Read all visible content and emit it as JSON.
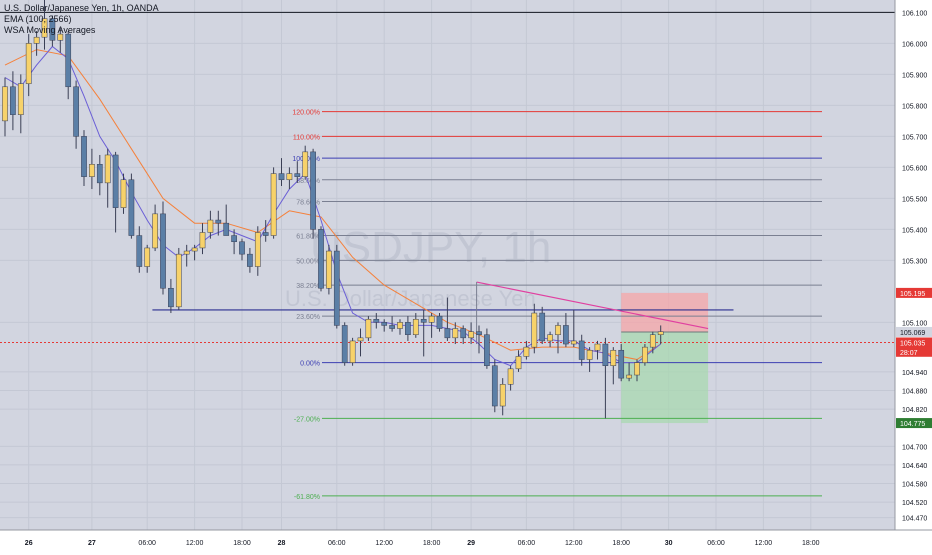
{
  "header": {
    "symbol_line": "U.S. Dollar/Japanese Yen, 1h, OANDA",
    "ema_line": "EMA (100, 2566)",
    "wsa_line": "WSA Moving Averages"
  },
  "watermark": {
    "ticker": "USDJPY, 1h",
    "name": "U.S. Dollar/Japanese Yen"
  },
  "colors": {
    "background": "#d2d5e0",
    "bull_candle": "#f7d26a",
    "bear_candle": "#5b7fa6",
    "ema_line": "#f5813b",
    "wma_line": "#6b5fd6",
    "fib_blue": "#3c3fb3",
    "fib_red": "#e53935",
    "fib_gray": "#7a7f91",
    "fib_green": "#4caf50",
    "trendline": "#e040a0",
    "support": "#2b2f8f",
    "price_current": "#e53935",
    "sl_zone": "#f5a5a8",
    "tp_zone": "#a8d8b0"
  },
  "chart_data": {
    "type": "candlestick",
    "y_axis": {
      "ylim": [
        104.43,
        106.14
      ],
      "ticks": [
        106.1,
        106.0,
        105.9,
        105.8,
        105.7,
        105.6,
        105.5,
        105.4,
        105.3,
        105.1,
        104.94,
        104.88,
        104.82,
        104.7,
        104.64,
        104.58,
        104.52,
        104.47
      ],
      "tick_labels": [
        "106.100",
        "106.000",
        "105.900",
        "105.800",
        "105.700",
        "105.600",
        "105.500",
        "105.400",
        "105.300",
        "105.100",
        "104.940",
        "104.880",
        "104.820",
        "104.700",
        "104.640",
        "104.580",
        "104.520",
        "104.470"
      ]
    },
    "x_axis": {
      "tick_labels": [
        "26",
        "27",
        "06:00",
        "12:00",
        "18:00",
        "28",
        "06:00",
        "12:00",
        "18:00",
        "29",
        "06:00",
        "12:00",
        "18:00",
        "30",
        "06:00",
        "12:00",
        "18:00"
      ],
      "tick_index": [
        3,
        11,
        18,
        24,
        30,
        35,
        42,
        48,
        54,
        59,
        66,
        72,
        78,
        84,
        90,
        96,
        102
      ]
    },
    "candles": [
      [
        105.75,
        105.89,
        105.7,
        105.86
      ],
      [
        105.86,
        105.91,
        105.72,
        105.77
      ],
      [
        105.77,
        105.9,
        105.71,
        105.87
      ],
      [
        105.87,
        106.03,
        105.83,
        106.0
      ],
      [
        106.0,
        106.04,
        105.96,
        106.02
      ],
      [
        106.02,
        106.14,
        105.98,
        106.08
      ],
      [
        106.08,
        106.09,
        105.99,
        106.01
      ],
      [
        106.01,
        106.05,
        105.97,
        106.03
      ],
      [
        106.03,
        106.04,
        105.82,
        105.86
      ],
      [
        105.86,
        105.88,
        105.66,
        105.7
      ],
      [
        105.7,
        105.72,
        105.54,
        105.57
      ],
      [
        105.57,
        105.66,
        105.53,
        105.61
      ],
      [
        105.61,
        105.64,
        105.51,
        105.55
      ],
      [
        105.55,
        105.66,
        105.47,
        105.64
      ],
      [
        105.64,
        105.65,
        105.39,
        105.47
      ],
      [
        105.47,
        105.58,
        105.45,
        105.56
      ],
      [
        105.56,
        105.58,
        105.37,
        105.38
      ],
      [
        105.38,
        105.41,
        105.26,
        105.28
      ],
      [
        105.28,
        105.35,
        105.26,
        105.34
      ],
      [
        105.34,
        105.48,
        105.33,
        105.45
      ],
      [
        105.45,
        105.49,
        105.19,
        105.21
      ],
      [
        105.21,
        105.24,
        105.13,
        105.15
      ],
      [
        105.15,
        105.34,
        105.14,
        105.32
      ],
      [
        105.32,
        105.35,
        105.28,
        105.33
      ],
      [
        105.33,
        105.35,
        105.3,
        105.34
      ],
      [
        105.34,
        105.42,
        105.32,
        105.39
      ],
      [
        105.39,
        105.46,
        105.37,
        105.43
      ],
      [
        105.43,
        105.46,
        105.38,
        105.42
      ],
      [
        105.42,
        105.48,
        105.38,
        105.38
      ],
      [
        105.38,
        105.4,
        105.32,
        105.36
      ],
      [
        105.36,
        105.37,
        105.3,
        105.32
      ],
      [
        105.32,
        105.34,
        105.26,
        105.28
      ],
      [
        105.28,
        105.41,
        105.25,
        105.39
      ],
      [
        105.39,
        105.43,
        105.36,
        105.38
      ],
      [
        105.38,
        105.6,
        105.37,
        105.58
      ],
      [
        105.58,
        105.63,
        105.54,
        105.56
      ],
      [
        105.56,
        105.6,
        105.53,
        105.58
      ],
      [
        105.58,
        105.62,
        105.55,
        105.57
      ],
      [
        105.57,
        105.67,
        105.56,
        105.65
      ],
      [
        105.65,
        105.66,
        105.37,
        105.4
      ],
      [
        105.4,
        105.41,
        105.2,
        105.21
      ],
      [
        105.21,
        105.35,
        105.19,
        105.33
      ],
      [
        105.33,
        105.35,
        105.08,
        105.09
      ],
      [
        105.09,
        105.1,
        104.96,
        104.97
      ],
      [
        104.97,
        105.05,
        104.96,
        105.04
      ],
      [
        105.04,
        105.08,
        104.99,
        105.05
      ],
      [
        105.05,
        105.12,
        105.04,
        105.11
      ],
      [
        105.11,
        105.13,
        105.08,
        105.1
      ],
      [
        105.1,
        105.11,
        105.07,
        105.09
      ],
      [
        105.09,
        105.12,
        105.07,
        105.08
      ],
      [
        105.08,
        105.11,
        105.06,
        105.1
      ],
      [
        105.1,
        105.12,
        105.04,
        105.06
      ],
      [
        105.06,
        105.13,
        105.05,
        105.11
      ],
      [
        105.11,
        105.14,
        104.99,
        105.1
      ],
      [
        105.1,
        105.13,
        105.05,
        105.12
      ],
      [
        105.12,
        105.13,
        105.07,
        105.08
      ],
      [
        105.08,
        105.18,
        105.04,
        105.05
      ],
      [
        105.05,
        105.1,
        105.03,
        105.08
      ],
      [
        105.08,
        105.09,
        105.03,
        105.05
      ],
      [
        105.05,
        105.1,
        105.03,
        105.07
      ],
      [
        105.07,
        105.09,
        105.0,
        105.06
      ],
      [
        105.06,
        105.08,
        104.95,
        104.96
      ],
      [
        104.96,
        104.98,
        104.81,
        104.83
      ],
      [
        104.83,
        104.92,
        104.8,
        104.9
      ],
      [
        104.9,
        104.96,
        104.88,
        104.95
      ],
      [
        104.95,
        105.01,
        104.94,
        104.99
      ],
      [
        104.99,
        105.04,
        104.98,
        105.02
      ],
      [
        105.02,
        105.16,
        105.0,
        105.13
      ],
      [
        105.13,
        105.15,
        105.03,
        105.04
      ],
      [
        105.04,
        105.07,
        105.02,
        105.06
      ],
      [
        105.06,
        105.1,
        105.0,
        105.09
      ],
      [
        105.09,
        105.13,
        105.02,
        105.03
      ],
      [
        105.03,
        105.14,
        105.02,
        105.04
      ],
      [
        105.04,
        105.06,
        104.96,
        104.98
      ],
      [
        104.98,
        105.02,
        104.94,
        105.01
      ],
      [
        105.01,
        105.04,
        104.98,
        105.03
      ],
      [
        105.03,
        105.05,
        104.79,
        104.96
      ],
      [
        104.96,
        105.02,
        104.9,
        105.01
      ],
      [
        105.01,
        105.03,
        104.91,
        104.92
      ],
      [
        104.92,
        104.97,
        104.91,
        104.93
      ],
      [
        104.93,
        104.98,
        104.91,
        104.97
      ],
      [
        104.97,
        105.03,
        104.96,
        105.02
      ],
      [
        105.02,
        105.07,
        105.0,
        105.06
      ],
      [
        105.06,
        105.09,
        105.03,
        105.07
      ]
    ],
    "ema_series": {
      "name": "EMA (100, 2566)",
      "points": [
        [
          28,
          106.14
        ],
        [
          34,
          106.02
        ],
        [
          40,
          105.9
        ],
        [
          46,
          105.78
        ],
        [
          52,
          105.68
        ],
        [
          56,
          105.6
        ],
        [
          60,
          105.54
        ],
        [
          63,
          105.49
        ]
      ]
    },
    "wma_series": {
      "name": "WSA Moving Averages",
      "points": [
        [
          0,
          105.89
        ],
        [
          2,
          105.86
        ],
        [
          4,
          105.93
        ],
        [
          6,
          105.99
        ],
        [
          8,
          105.95
        ],
        [
          10,
          105.83
        ],
        [
          12,
          105.7
        ],
        [
          14,
          105.62
        ],
        [
          16,
          105.52
        ],
        [
          18,
          105.43
        ],
        [
          20,
          105.35
        ],
        [
          22,
          105.31
        ],
        [
          24,
          105.34
        ],
        [
          26,
          105.38
        ],
        [
          28,
          105.4
        ],
        [
          30,
          105.38
        ],
        [
          32,
          105.36
        ],
        [
          34,
          105.45
        ],
        [
          36,
          105.53
        ],
        [
          38,
          105.58
        ],
        [
          40,
          105.43
        ],
        [
          42,
          105.26
        ],
        [
          44,
          105.13
        ],
        [
          46,
          105.1
        ],
        [
          48,
          105.1
        ],
        [
          50,
          105.09
        ],
        [
          52,
          105.09
        ],
        [
          54,
          105.09
        ],
        [
          56,
          105.08
        ],
        [
          58,
          105.07
        ],
        [
          60,
          105.03
        ],
        [
          62,
          104.98
        ],
        [
          64,
          104.96
        ],
        [
          66,
          105.02
        ],
        [
          68,
          105.05
        ],
        [
          70,
          105.04
        ],
        [
          72,
          105.04
        ],
        [
          74,
          105.01
        ],
        [
          76,
          105.0
        ],
        [
          78,
          104.97
        ],
        [
          80,
          104.97
        ],
        [
          82,
          105.01
        ],
        [
          83,
          105.03
        ]
      ]
    },
    "ema_short_series": {
      "name": "EMA",
      "points": [
        [
          0,
          105.93
        ],
        [
          4,
          105.98
        ],
        [
          8,
          105.96
        ],
        [
          12,
          105.82
        ],
        [
          16,
          105.66
        ],
        [
          20,
          105.5
        ],
        [
          24,
          105.42
        ],
        [
          28,
          105.42
        ],
        [
          32,
          105.39
        ],
        [
          36,
          105.46
        ],
        [
          40,
          105.44
        ],
        [
          44,
          105.31
        ],
        [
          48,
          105.22
        ],
        [
          52,
          105.16
        ],
        [
          56,
          105.1
        ],
        [
          60,
          105.06
        ],
        [
          64,
          105.01
        ],
        [
          68,
          105.02
        ],
        [
          72,
          105.02
        ],
        [
          76,
          105.0
        ],
        [
          80,
          104.98
        ],
        [
          83,
          105.03
        ]
      ]
    },
    "fib_levels": [
      {
        "label": "120.00%",
        "price": 105.78,
        "color": "#e53935"
      },
      {
        "label": "110.00%",
        "price": 105.7,
        "color": "#e53935"
      },
      {
        "label": "100.00%",
        "price": 105.63,
        "color": "#3c3fb3"
      },
      {
        "label": "88.60%",
        "price": 105.56,
        "color": "#7a7f91"
      },
      {
        "label": "78.60%",
        "price": 105.49,
        "color": "#7a7f91"
      },
      {
        "label": "61.80%",
        "price": 105.38,
        "color": "#7a7f91"
      },
      {
        "label": "50.00%",
        "price": 105.3,
        "color": "#7a7f91"
      },
      {
        "label": "38.20%",
        "price": 105.22,
        "color": "#7a7f91"
      },
      {
        "label": "23.60%",
        "price": 105.12,
        "color": "#7a7f91"
      },
      {
        "label": "0.00%",
        "price": 104.97,
        "color": "#3c3fb3"
      },
      {
        "label": "-27.00%",
        "price": 104.79,
        "color": "#4caf50"
      },
      {
        "label": "-61.80%",
        "price": 104.54,
        "color": "#4caf50"
      }
    ],
    "support_line": {
      "price": 105.14,
      "from": 6,
      "to": 65
    },
    "trendline": {
      "x1": 54,
      "y1": 105.23,
      "x2": 89,
      "y2": 105.08
    },
    "position": {
      "entry": 105.069,
      "stop": 105.195,
      "target": 104.775,
      "from": 78,
      "to": 89
    },
    "price_labels": {
      "stop": "105.195",
      "current": "105.069",
      "last": "105.035",
      "countdown": "28:07",
      "target": "104.775"
    },
    "grid": true
  }
}
